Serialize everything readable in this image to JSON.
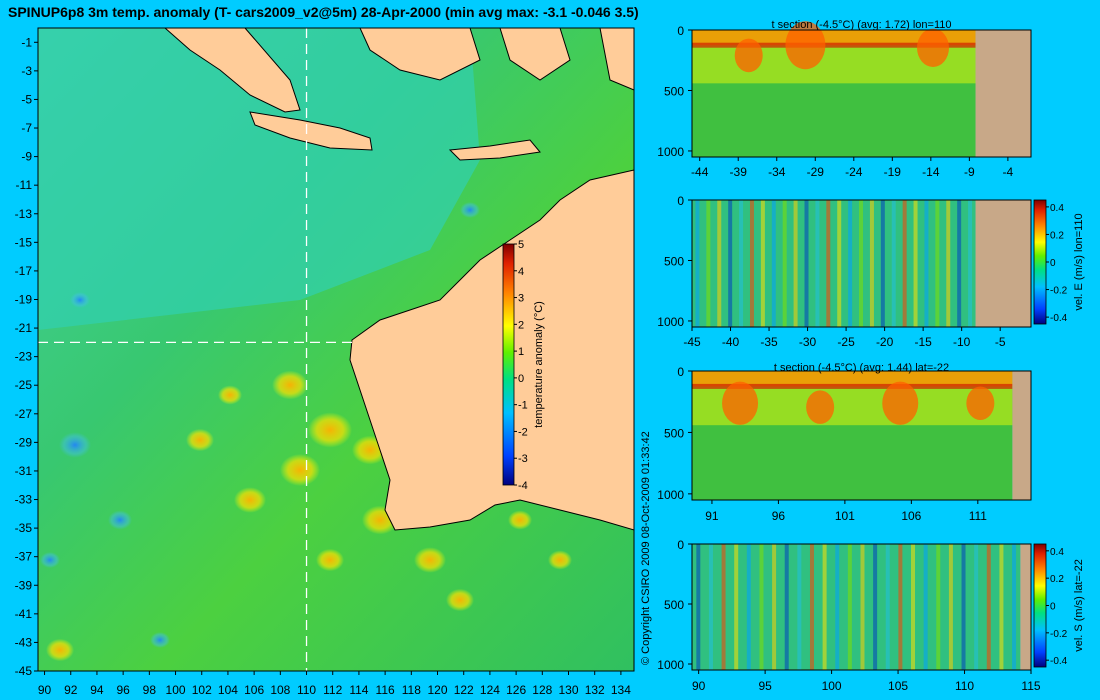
{
  "main_map": {
    "title": "SPINUP6p8 3m temp. anomaly (T- cars2009_v2@5m) 28-Apr-2000 (min avg max: -3.1 -0.046 3.5)",
    "x_ticks": [
      90,
      92,
      94,
      96,
      98,
      100,
      102,
      104,
      106,
      108,
      110,
      112,
      114,
      116,
      118,
      120,
      122,
      124,
      126,
      128,
      130,
      132,
      134
    ],
    "y_ticks": [
      -1,
      -3,
      -5,
      -7,
      -9,
      -11,
      -13,
      -15,
      -17,
      -19,
      -21,
      -23,
      -25,
      -27,
      -29,
      -31,
      -33,
      -35,
      -37,
      -39,
      -41,
      -43,
      -45
    ],
    "xlim": [
      89.5,
      135
    ],
    "ylim": [
      -45,
      0
    ],
    "section_lon": 110,
    "section_lat": -22,
    "colorbar": {
      "label": "temperature anomaly (°C)",
      "ticks": [
        5,
        4,
        3,
        2,
        1,
        0,
        -1,
        -2,
        -3,
        -4
      ],
      "range": [
        -4,
        5
      ]
    }
  },
  "copyright": "© Copyright CSIRO 2009   08-Oct-2009 01:33:42",
  "chart_data": [
    {
      "type": "heatmap",
      "title": "SPINUP6p8 3m temp. anomaly (T- cars2009_v2@5m) 28-Apr-2000 (min avg max: -3.1 -0.046 3.5)",
      "x_ticks": [
        90,
        92,
        94,
        96,
        98,
        100,
        102,
        104,
        106,
        108,
        110,
        112,
        114,
        116,
        118,
        120,
        122,
        124,
        126,
        128,
        130,
        132,
        134
      ],
      "y_ticks": [
        -1,
        -3,
        -5,
        -7,
        -9,
        -11,
        -13,
        -15,
        -17,
        -19,
        -21,
        -23,
        -25,
        -27,
        -29,
        -31,
        -33,
        -35,
        -37,
        -39,
        -41,
        -43,
        -45
      ],
      "xlim": [
        89.5,
        135
      ],
      "ylim": [
        -45,
        0
      ],
      "stats": {
        "min": -3.1,
        "avg": -0.046,
        "max": 3.5
      },
      "colorbar": {
        "label": "temperature anomaly (°C)",
        "range": [
          -4,
          5
        ]
      }
    },
    {
      "type": "heatmap",
      "title": "t section (-4.5°C) (avg: 1.72) lon=110",
      "x_ticks": [
        -44,
        -39,
        -34,
        -29,
        -24,
        -19,
        -14,
        -9,
        -4
      ],
      "y_ticks": [
        0,
        500,
        1000
      ],
      "xlim": [
        -45,
        -1
      ],
      "ylim": [
        1050,
        0
      ],
      "land_from_x": -8.2
    },
    {
      "type": "heatmap",
      "title": "",
      "x_ticks": [
        -45,
        -40,
        -35,
        -30,
        -25,
        -20,
        -15,
        -10,
        -5
      ],
      "y_ticks": [
        0,
        500,
        1000
      ],
      "xlim": [
        -45,
        -1
      ],
      "ylim": [
        1050,
        0
      ],
      "land_from_x": -8.2,
      "colorbar": {
        "label": "vel. E (m/s) lon=110",
        "ticks": [
          0.4,
          0.2,
          0,
          -0.2,
          -0.4
        ],
        "range": [
          -0.45,
          0.45
        ]
      }
    },
    {
      "type": "heatmap",
      "title": "t section (-4.5°C) (avg: 1.44) lat=-22",
      "x_ticks": [
        91,
        96,
        101,
        106,
        111
      ],
      "y_ticks": [
        0,
        500,
        1000
      ],
      "xlim": [
        89.5,
        115
      ],
      "ylim": [
        1050,
        0
      ],
      "land_from_x": 113.6
    },
    {
      "type": "heatmap",
      "title": "",
      "x_ticks": [
        90,
        95,
        100,
        105,
        110,
        115
      ],
      "y_ticks": [
        0,
        500,
        1000
      ],
      "xlim": [
        89.5,
        115
      ],
      "ylim": [
        1050,
        0
      ],
      "land_from_x": 114.2,
      "colorbar": {
        "label": "vel. S (m/s) lat=-22",
        "ticks": [
          0.4,
          0.2,
          0,
          -0.2,
          -0.4
        ],
        "range": [
          -0.45,
          0.45
        ]
      }
    }
  ]
}
